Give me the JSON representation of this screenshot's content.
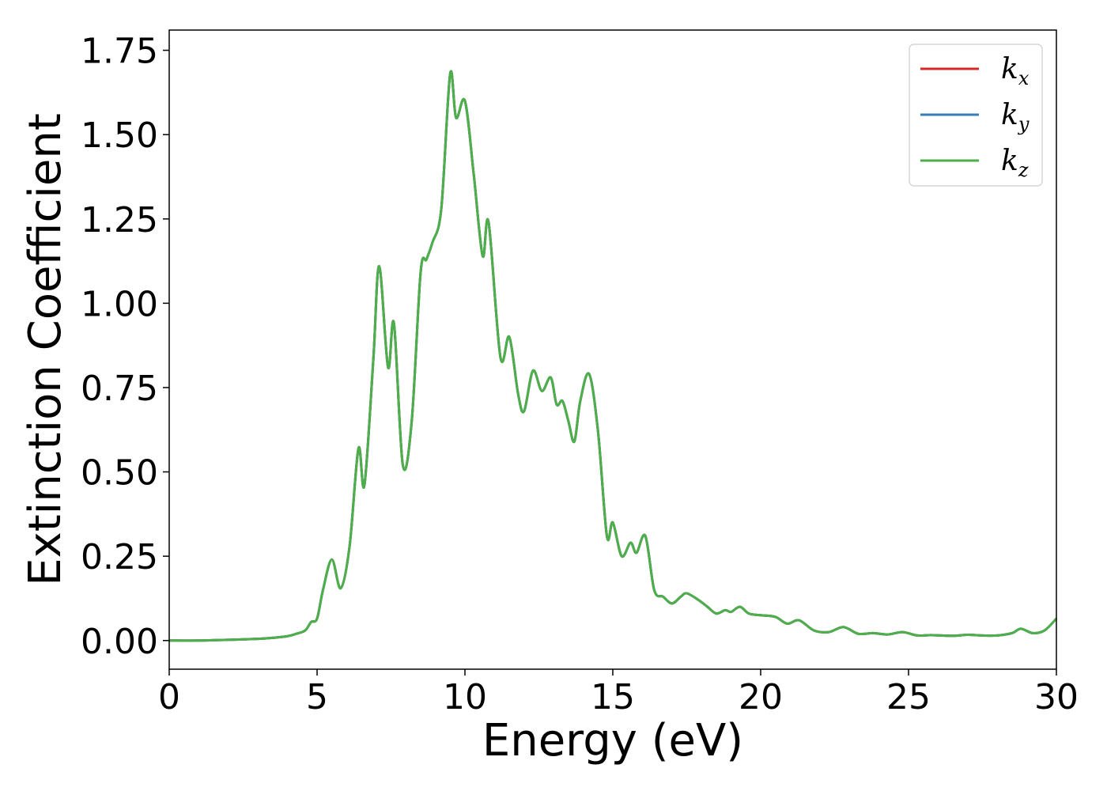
{
  "chart_data": {
    "type": "line",
    "title": "",
    "xlabel": "Energy (eV)",
    "ylabel": "Extinction Coefficient",
    "xlim": [
      0,
      30
    ],
    "ylim": [
      -0.085,
      1.81
    ],
    "xticks": [
      0,
      5,
      10,
      15,
      20,
      25,
      30
    ],
    "xtick_labels": [
      "0",
      "5",
      "10",
      "15",
      "20",
      "25",
      "30"
    ],
    "yticks": [
      0.0,
      0.25,
      0.5,
      0.75,
      1.0,
      1.25,
      1.5,
      1.75
    ],
    "ytick_labels": [
      "0.00",
      "0.25",
      "0.50",
      "0.75",
      "1.00",
      "1.25",
      "1.50",
      "1.75"
    ],
    "grid": false,
    "legend_position": "top-right",
    "legend": [
      {
        "base": "k",
        "sub": "x",
        "color": "#d62728"
      },
      {
        "base": "k",
        "sub": "y",
        "color": "#377eb8"
      },
      {
        "base": "k",
        "sub": "z",
        "color": "#4daf4a"
      }
    ],
    "x": [
      0,
      1,
      2,
      3,
      3.5,
      4,
      4.3,
      4.6,
      4.8,
      5.0,
      5.2,
      5.5,
      5.8,
      6.1,
      6.4,
      6.6,
      6.9,
      7.1,
      7.4,
      7.6,
      7.9,
      8.2,
      8.5,
      8.7,
      8.9,
      9.2,
      9.5,
      9.7,
      10.0,
      10.3,
      10.6,
      10.8,
      11.2,
      11.5,
      11.8,
      12.0,
      12.3,
      12.6,
      12.9,
      13.1,
      13.3,
      13.5,
      13.7,
      13.9,
      14.2,
      14.5,
      14.8,
      15.0,
      15.3,
      15.6,
      15.8,
      16.1,
      16.4,
      16.7,
      17.0,
      17.3,
      17.5,
      17.9,
      18.2,
      18.5,
      18.8,
      19.0,
      19.3,
      19.6,
      20.0,
      20.5,
      20.9,
      21.3,
      21.8,
      22.3,
      22.8,
      23.3,
      23.8,
      24.3,
      24.8,
      25.3,
      25.8,
      26.5,
      27.0,
      27.5,
      28.0,
      28.5,
      28.8,
      29.2,
      29.6,
      30.0
    ],
    "series": [
      {
        "name": "k_x",
        "color": "#d62728",
        "values": [
          0.0,
          0.0,
          0.002,
          0.005,
          0.008,
          0.013,
          0.02,
          0.03,
          0.055,
          0.065,
          0.15,
          0.24,
          0.155,
          0.28,
          0.57,
          0.46,
          0.83,
          1.11,
          0.81,
          0.94,
          0.52,
          0.65,
          1.09,
          1.13,
          1.18,
          1.28,
          1.68,
          1.55,
          1.6,
          1.38,
          1.14,
          1.24,
          0.84,
          0.9,
          0.73,
          0.68,
          0.8,
          0.74,
          0.78,
          0.7,
          0.71,
          0.65,
          0.59,
          0.71,
          0.79,
          0.62,
          0.31,
          0.35,
          0.25,
          0.29,
          0.26,
          0.31,
          0.15,
          0.13,
          0.11,
          0.13,
          0.14,
          0.12,
          0.1,
          0.08,
          0.09,
          0.085,
          0.1,
          0.08,
          0.075,
          0.07,
          0.05,
          0.06,
          0.03,
          0.025,
          0.04,
          0.02,
          0.022,
          0.018,
          0.025,
          0.015,
          0.016,
          0.014,
          0.017,
          0.015,
          0.015,
          0.022,
          0.035,
          0.022,
          0.03,
          0.065
        ]
      },
      {
        "name": "k_y",
        "color": "#377eb8",
        "values": [
          0.0,
          0.0,
          0.002,
          0.005,
          0.008,
          0.013,
          0.02,
          0.03,
          0.055,
          0.065,
          0.15,
          0.24,
          0.155,
          0.28,
          0.57,
          0.46,
          0.83,
          1.11,
          0.81,
          0.94,
          0.52,
          0.65,
          1.09,
          1.13,
          1.18,
          1.28,
          1.68,
          1.55,
          1.6,
          1.38,
          1.14,
          1.24,
          0.84,
          0.9,
          0.73,
          0.68,
          0.8,
          0.74,
          0.78,
          0.7,
          0.71,
          0.65,
          0.59,
          0.71,
          0.79,
          0.62,
          0.31,
          0.35,
          0.25,
          0.29,
          0.26,
          0.31,
          0.15,
          0.13,
          0.11,
          0.13,
          0.14,
          0.12,
          0.1,
          0.08,
          0.09,
          0.085,
          0.1,
          0.08,
          0.075,
          0.07,
          0.05,
          0.06,
          0.03,
          0.025,
          0.04,
          0.02,
          0.022,
          0.018,
          0.025,
          0.015,
          0.016,
          0.014,
          0.017,
          0.015,
          0.015,
          0.022,
          0.035,
          0.022,
          0.03,
          0.065
        ]
      },
      {
        "name": "k_z",
        "color": "#4daf4a",
        "values": [
          0.0,
          0.0,
          0.002,
          0.005,
          0.008,
          0.013,
          0.02,
          0.03,
          0.055,
          0.065,
          0.15,
          0.24,
          0.155,
          0.28,
          0.57,
          0.46,
          0.83,
          1.11,
          0.81,
          0.94,
          0.52,
          0.65,
          1.09,
          1.13,
          1.18,
          1.28,
          1.68,
          1.55,
          1.6,
          1.38,
          1.14,
          1.24,
          0.84,
          0.9,
          0.73,
          0.68,
          0.8,
          0.74,
          0.78,
          0.7,
          0.71,
          0.65,
          0.59,
          0.71,
          0.79,
          0.62,
          0.31,
          0.35,
          0.25,
          0.29,
          0.26,
          0.31,
          0.15,
          0.13,
          0.11,
          0.13,
          0.14,
          0.12,
          0.1,
          0.08,
          0.09,
          0.085,
          0.1,
          0.08,
          0.075,
          0.07,
          0.05,
          0.06,
          0.03,
          0.025,
          0.04,
          0.02,
          0.022,
          0.018,
          0.025,
          0.015,
          0.016,
          0.014,
          0.017,
          0.015,
          0.015,
          0.022,
          0.035,
          0.022,
          0.03,
          0.065
        ]
      }
    ]
  }
}
